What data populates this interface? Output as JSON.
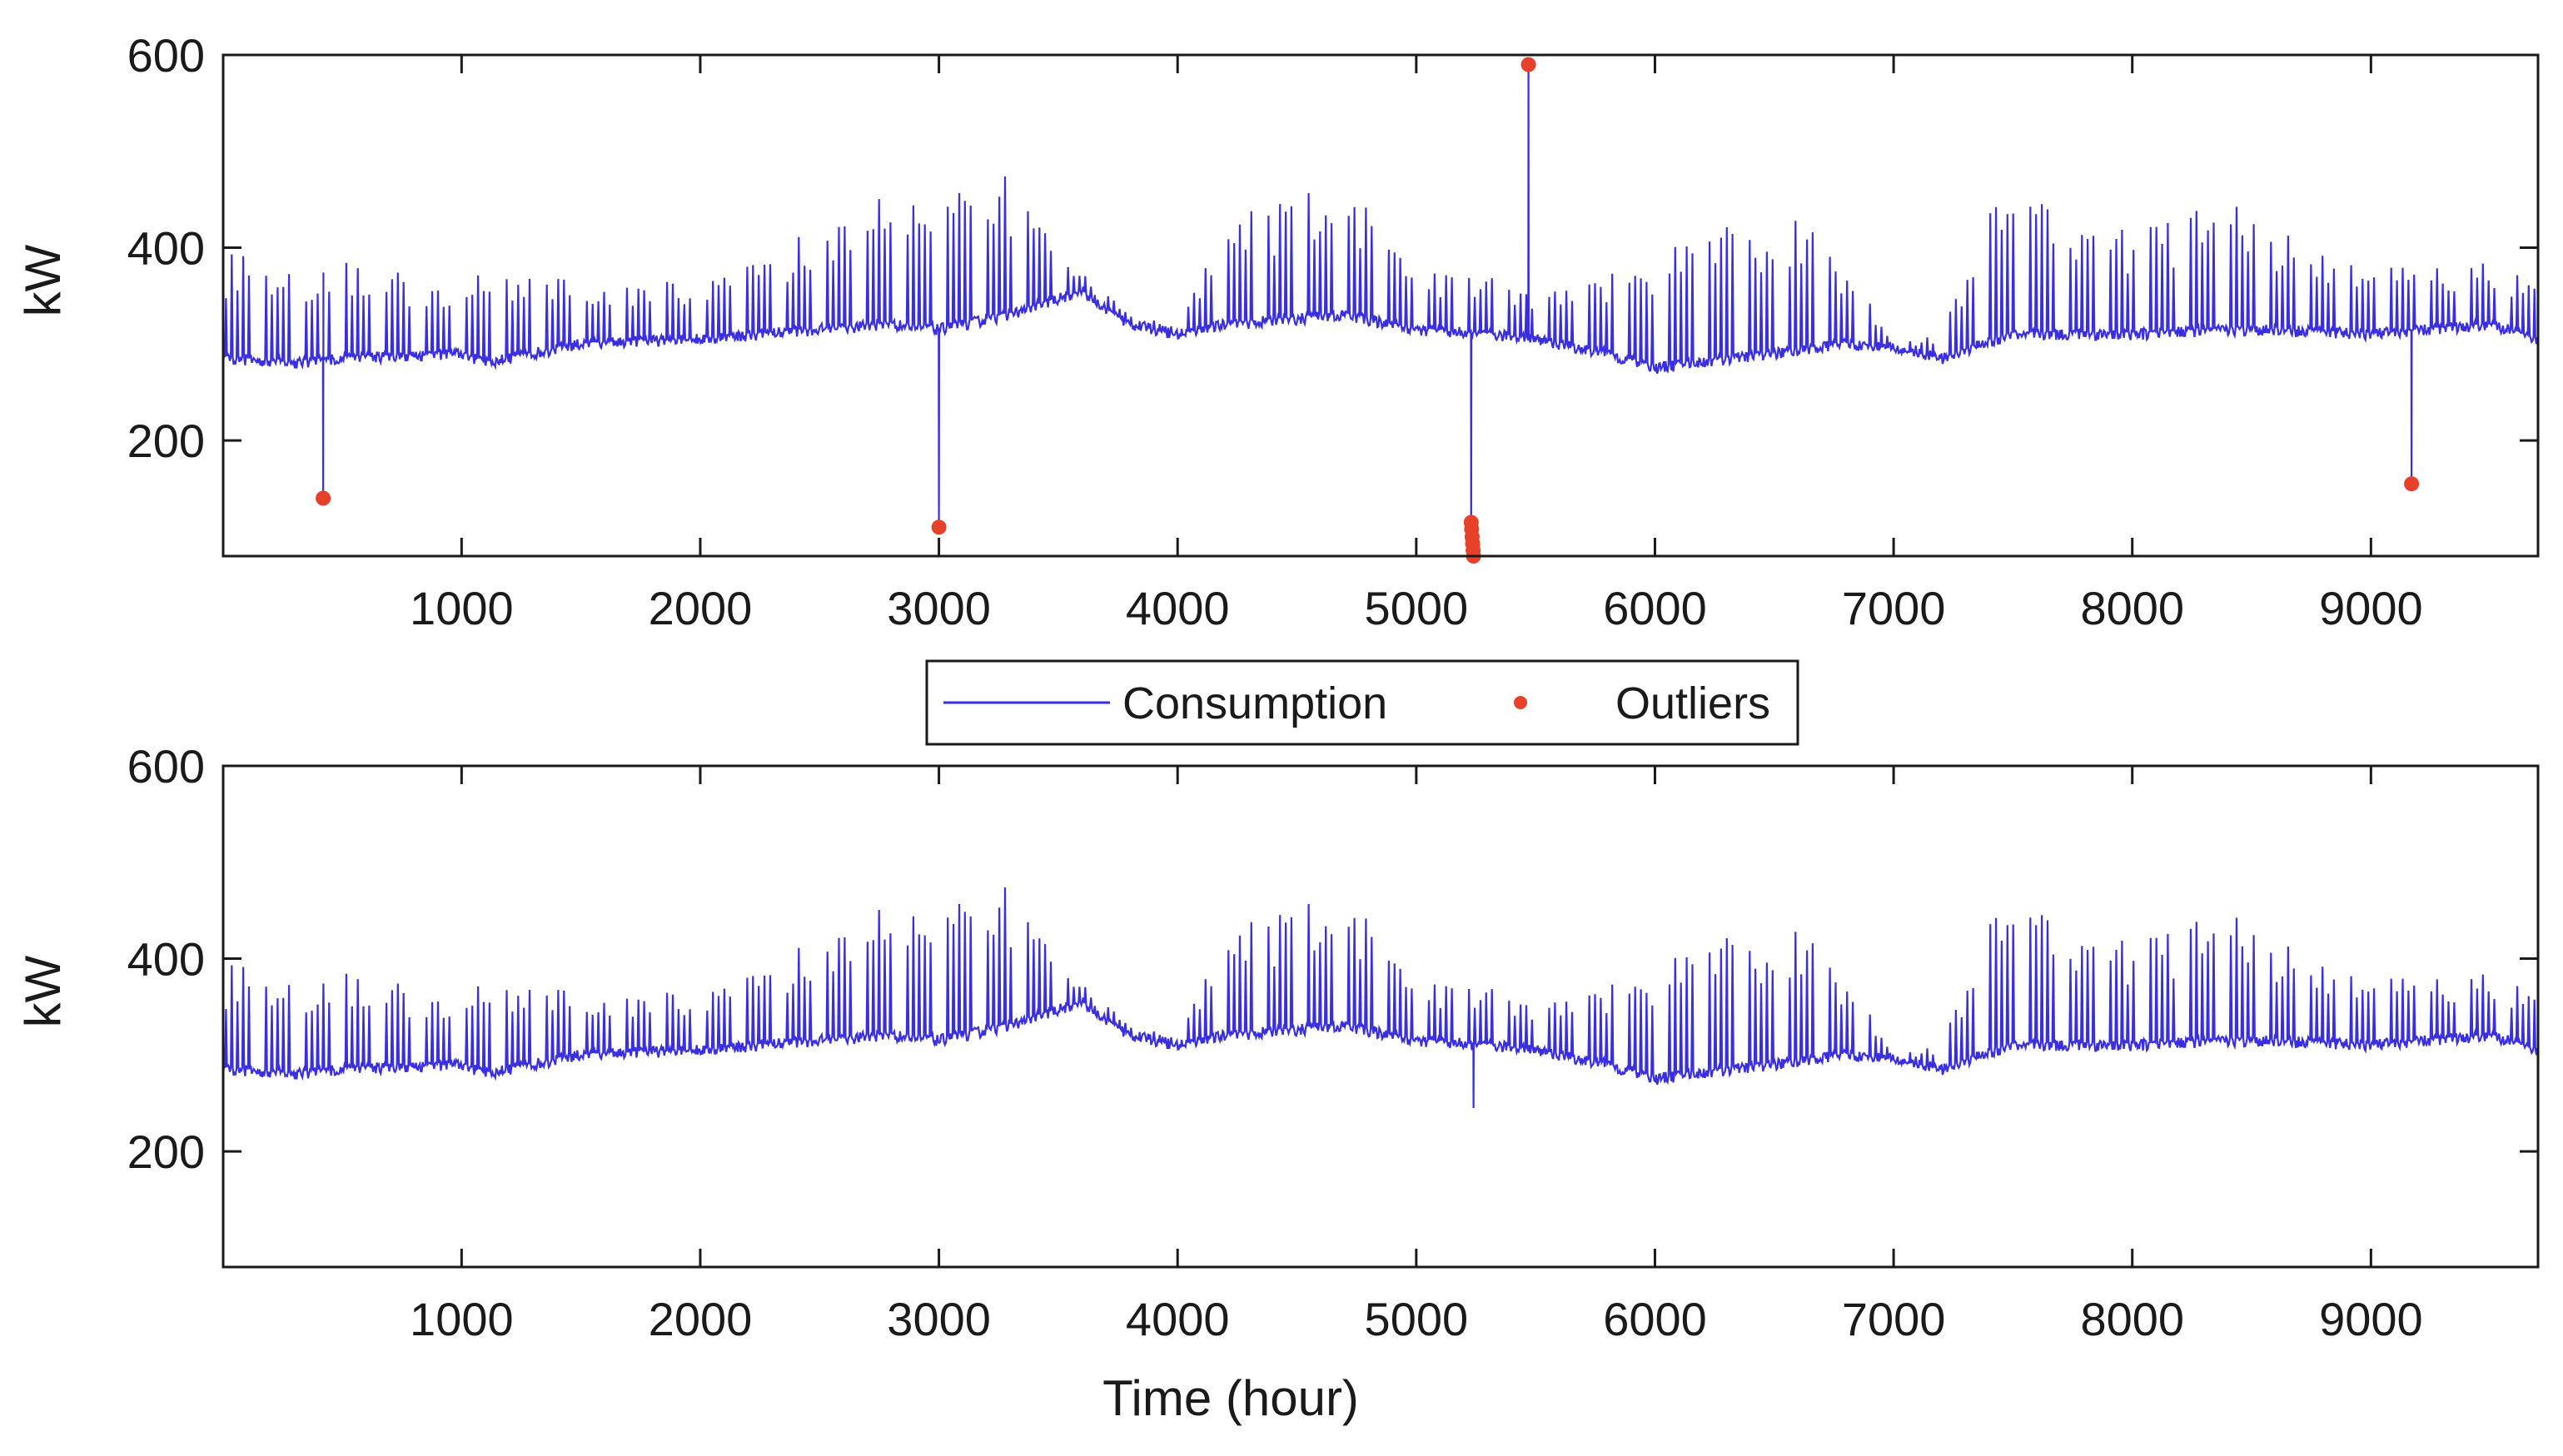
{
  "colors": {
    "consumption": "#3a2fe0",
    "outliers": "#e8412a",
    "axes": "#1a1a1a",
    "background": "#ffffff"
  },
  "legend": {
    "consumption_label": "Consumption",
    "outliers_label": "Outliers",
    "placement": "between panels, centered"
  },
  "chart_data": [
    {
      "type": "line",
      "title": "",
      "xlabel": "",
      "ylabel": "kW",
      "xlim": [
        1,
        9700
      ],
      "ylim": [
        80,
        600
      ],
      "xticks": [
        1000,
        2000,
        3000,
        4000,
        5000,
        6000,
        7000,
        8000,
        9000
      ],
      "xtick_labels": [
        "1000",
        "2000",
        "3000",
        "4000",
        "5000",
        "6000",
        "7000",
        "8000",
        "9000"
      ],
      "yticks": [
        200,
        400,
        600
      ],
      "ytick_labels": [
        "200",
        "400",
        "600"
      ],
      "grid": false,
      "series": [
        {
          "name": "Consumption",
          "kind": "hourly load profile, ~9700 hourly samples with daily peaks and weekday/weekend cycles",
          "baseline_envelope": {
            "x": [
              1,
              300,
              500,
              1000,
              1100,
              1500,
              2000,
              2500,
              2800,
              3000,
              3300,
              3600,
              3800,
              4000,
              4200,
              4700,
              5000,
              5300,
              5500,
              5800,
              6000,
              6500,
              6800,
              7000,
              7200,
              7500,
              8000,
              8500,
              9000,
              9500,
              9700
            ],
            "values": [
              285,
              280,
              285,
              290,
              280,
              300,
              305,
              315,
              320,
              315,
              330,
              355,
              320,
              310,
              320,
              330,
              315,
              310,
              305,
              290,
              275,
              290,
              300,
              295,
              285,
              310,
              310,
              315,
              310,
              320,
              305
            ]
          },
          "peak_envelope": {
            "x": [
              1,
              300,
              500,
              1000,
              1100,
              1500,
              2000,
              2300,
              2600,
              2800,
              3000,
              3250,
              3500,
              3800,
              4000,
              4200,
              4700,
              5000,
              5300,
              5500,
              5800,
              6000,
              6300,
              6700,
              7000,
              7200,
              7400,
              8000,
              8400,
              9000,
              9500,
              9700
            ],
            "values": [
              395,
              385,
              385,
              375,
              380,
              365,
              365,
              400,
              430,
              480,
              440,
              495,
              400,
              330,
              320,
              430,
              470,
              380,
              370,
              360,
              370,
              400,
              435,
              430,
              300,
              310,
              460,
              420,
              450,
              380,
              385,
              370
            ]
          },
          "anomalies": [
            {
              "x": 420,
              "value": 140
            },
            {
              "x": 3000,
              "value": 110
            },
            {
              "x": 5230,
              "value": 80
            },
            {
              "x": 5470,
              "value": 590
            },
            {
              "x": 9170,
              "value": 155
            }
          ]
        },
        {
          "name": "Outliers",
          "kind": "scatter",
          "points": [
            {
              "x": 420,
              "y": 140
            },
            {
              "x": 3000,
              "y": 110
            },
            {
              "x": 5230,
              "y": 115
            },
            {
              "x": 5232,
              "y": 108
            },
            {
              "x": 5234,
              "y": 100
            },
            {
              "x": 5236,
              "y": 93
            },
            {
              "x": 5238,
              "y": 86
            },
            {
              "x": 5240,
              "y": 80
            },
            {
              "x": 5470,
              "y": 590
            },
            {
              "x": 9170,
              "y": 155
            }
          ]
        }
      ]
    },
    {
      "type": "line",
      "title": "",
      "xlabel": "Time (hour)",
      "ylabel": "kW",
      "xlim": [
        1,
        9700
      ],
      "ylim": [
        80,
        600
      ],
      "xticks": [
        1000,
        2000,
        3000,
        4000,
        5000,
        6000,
        7000,
        8000,
        9000
      ],
      "xtick_labels": [
        "1000",
        "2000",
        "3000",
        "4000",
        "5000",
        "6000",
        "7000",
        "8000",
        "9000"
      ],
      "yticks": [
        200,
        400,
        600
      ],
      "ytick_labels": [
        "200",
        "400",
        "600"
      ],
      "grid": false,
      "series": [
        {
          "name": "Consumption",
          "kind": "cleaned hourly load profile (outliers removed)",
          "baseline_envelope": {
            "x": [
              1,
              300,
              500,
              1000,
              1100,
              1500,
              2000,
              2500,
              2800,
              3000,
              3300,
              3600,
              3800,
              4000,
              4200,
              4700,
              5000,
              5300,
              5500,
              5800,
              6000,
              6500,
              6800,
              7000,
              7200,
              7500,
              8000,
              8500,
              9000,
              9500,
              9700
            ],
            "values": [
              285,
              280,
              285,
              290,
              280,
              300,
              305,
              315,
              320,
              315,
              330,
              355,
              320,
              310,
              320,
              330,
              315,
              310,
              305,
              290,
              275,
              290,
              300,
              295,
              285,
              310,
              310,
              315,
              310,
              320,
              305
            ]
          },
          "peak_envelope": {
            "x": [
              1,
              300,
              500,
              1000,
              1100,
              1500,
              2000,
              2300,
              2600,
              2800,
              3000,
              3250,
              3500,
              3800,
              4000,
              4200,
              4700,
              5000,
              5300,
              5500,
              5800,
              6000,
              6300,
              6700,
              7000,
              7200,
              7400,
              8000,
              8400,
              9000,
              9500,
              9700
            ],
            "values": [
              395,
              385,
              385,
              375,
              380,
              365,
              365,
              400,
              430,
              480,
              440,
              495,
              400,
              330,
              320,
              430,
              470,
              380,
              370,
              360,
              370,
              400,
              435,
              430,
              300,
              310,
              460,
              420,
              450,
              380,
              385,
              370
            ]
          },
          "anomalies": [
            {
              "x": 5240,
              "value": 245
            }
          ]
        }
      ]
    }
  ]
}
